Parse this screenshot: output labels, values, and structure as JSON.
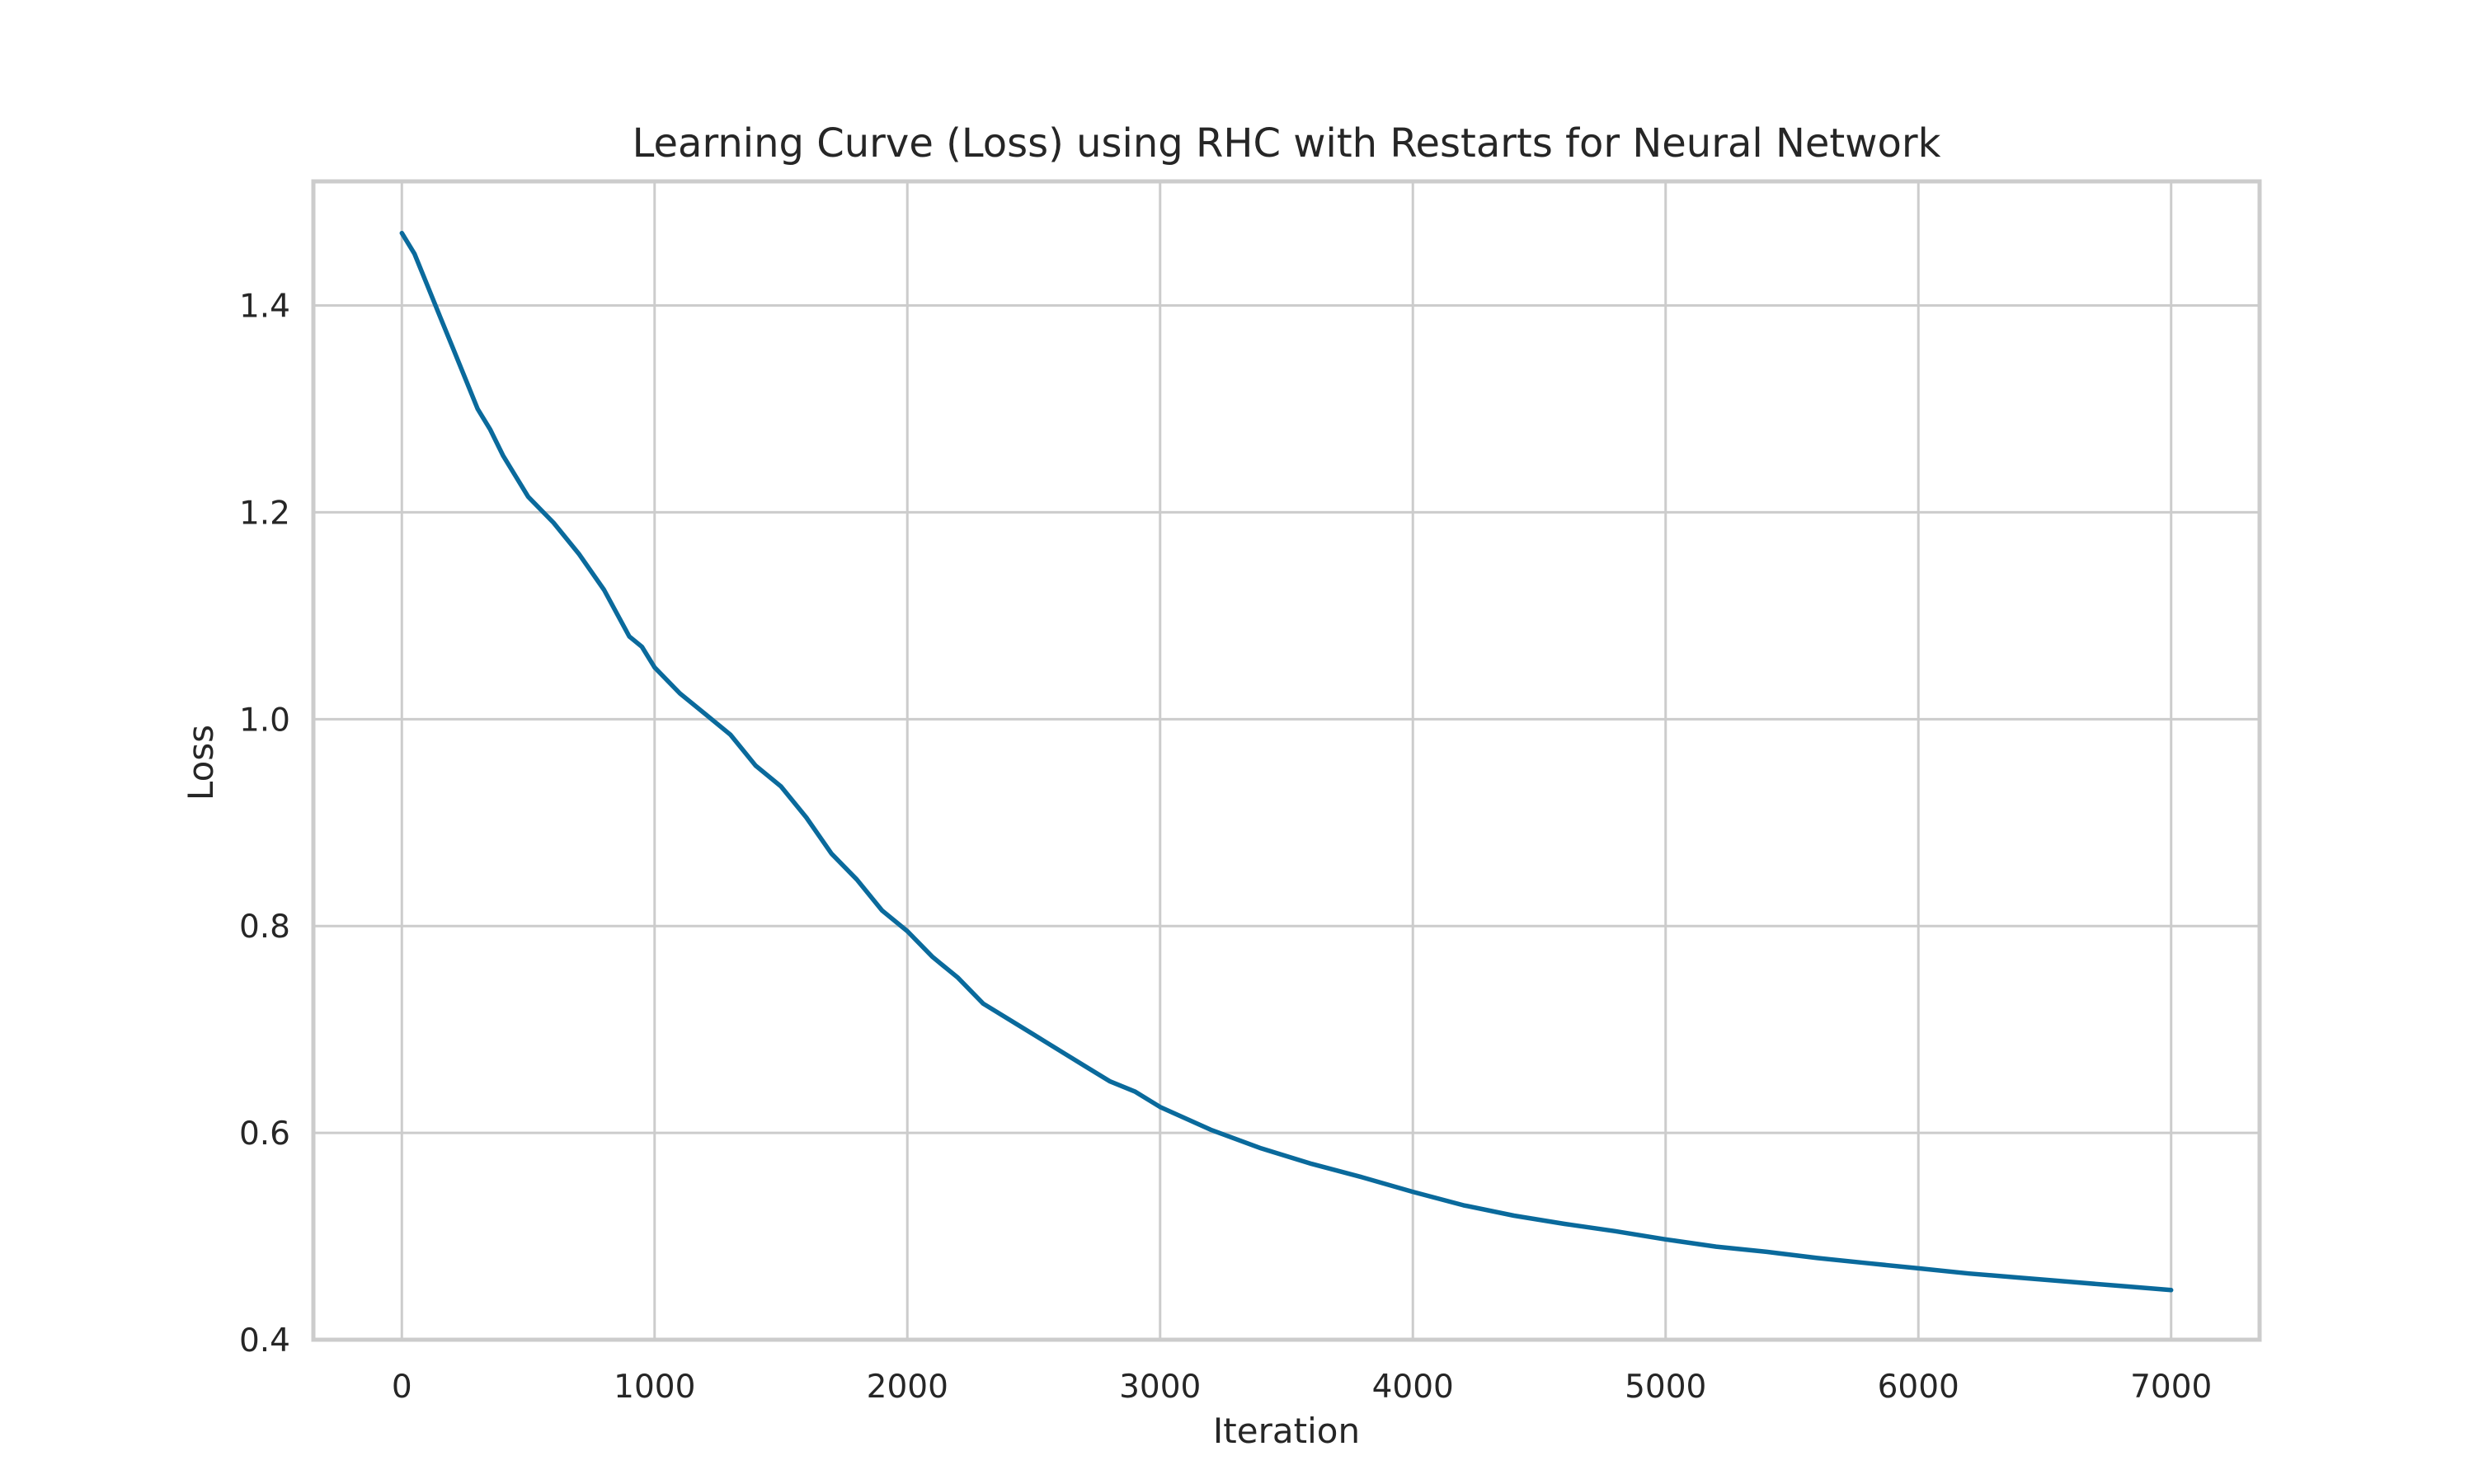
{
  "chart_data": {
    "type": "line",
    "title": "Learning Curve (Loss) using RHC with Restarts for Neural Network",
    "xlabel": "Iteration",
    "ylabel": "Loss",
    "xlim": [
      -350,
      7350
    ],
    "ylim": [
      0.4,
      1.52
    ],
    "xticks": [
      0,
      1000,
      2000,
      3000,
      4000,
      5000,
      6000,
      7000
    ],
    "yticks": [
      0.4,
      0.6,
      0.8,
      1.0,
      1.2,
      1.4
    ],
    "xtick_labels": [
      "0",
      "1000",
      "2000",
      "3000",
      "4000",
      "5000",
      "6000",
      "7000"
    ],
    "ytick_labels": [
      "0.4",
      "0.6",
      "0.8",
      "1.0",
      "1.2",
      "1.4"
    ],
    "grid": true,
    "colors": {
      "series": "#0a6a9c",
      "grid": "#cccccc",
      "text": "#262626"
    },
    "series": [
      {
        "color": "#0a6a9c",
        "x": [
          0,
          50,
          100,
          150,
          200,
          250,
          300,
          350,
          400,
          450,
          500,
          600,
          700,
          800,
          900,
          950,
          1000,
          1100,
          1200,
          1300,
          1400,
          1500,
          1600,
          1700,
          1800,
          1900,
          2000,
          2100,
          2200,
          2300,
          2400,
          2500,
          2600,
          2700,
          2800,
          2900,
          3000,
          3200,
          3400,
          3600,
          3800,
          4000,
          4200,
          4400,
          4600,
          4800,
          5000,
          5200,
          5400,
          5600,
          5800,
          6000,
          6200,
          6400,
          6600,
          6800,
          7000
        ],
        "y": [
          1.47,
          1.45,
          1.42,
          1.39,
          1.36,
          1.33,
          1.3,
          1.28,
          1.255,
          1.235,
          1.215,
          1.19,
          1.16,
          1.125,
          1.08,
          1.07,
          1.05,
          1.025,
          1.005,
          0.985,
          0.955,
          0.935,
          0.905,
          0.87,
          0.845,
          0.815,
          0.795,
          0.77,
          0.75,
          0.725,
          0.71,
          0.695,
          0.68,
          0.665,
          0.65,
          0.64,
          0.625,
          0.603,
          0.585,
          0.57,
          0.557,
          0.543,
          0.53,
          0.52,
          0.512,
          0.505,
          0.497,
          0.49,
          0.485,
          0.479,
          0.474,
          0.469,
          0.464,
          0.46,
          0.456,
          0.452,
          0.448
        ]
      }
    ]
  }
}
